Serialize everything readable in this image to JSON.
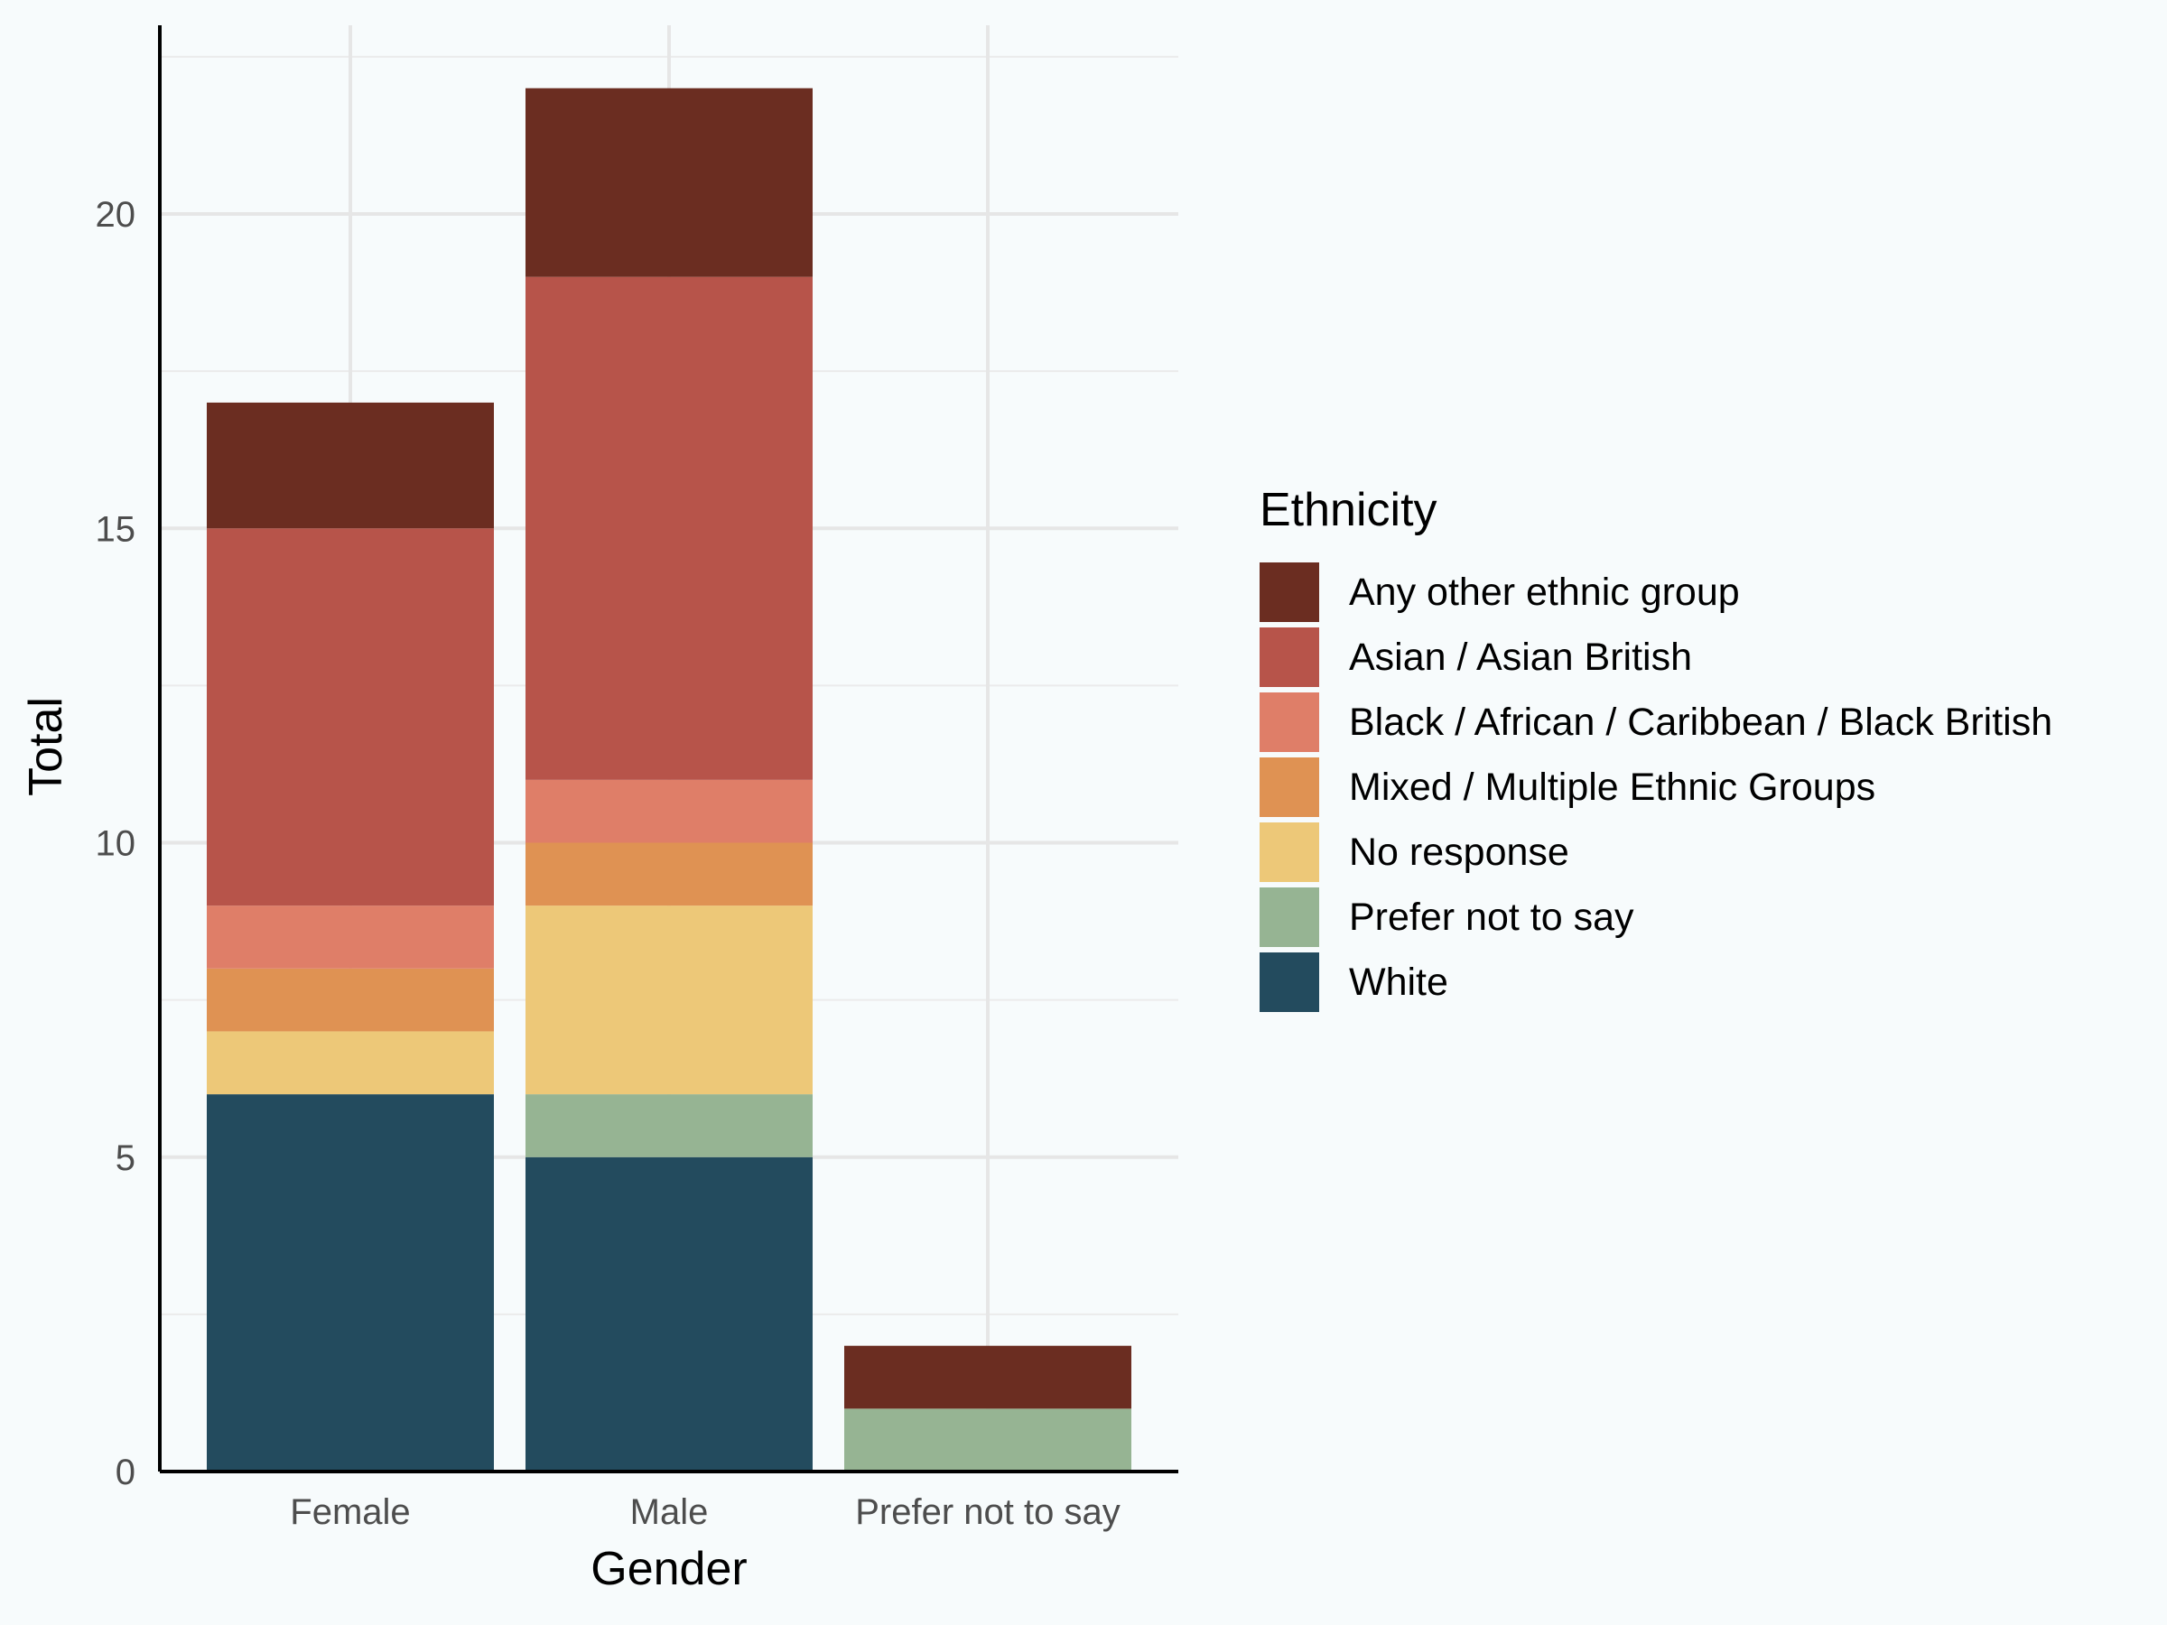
{
  "chart_data": {
    "type": "bar",
    "stacked": true,
    "title": "",
    "xlabel": "Gender",
    "ylabel": "Total",
    "categories": [
      "Female",
      "Male",
      "Prefer not to say"
    ],
    "ylim": [
      0,
      23
    ],
    "yticks": [
      0,
      5,
      10,
      15,
      20
    ],
    "grid": true,
    "legend": {
      "title": "Ethnicity",
      "position": "right"
    },
    "series": [
      {
        "name": "White",
        "color": "#234b5e",
        "values": [
          6,
          5,
          0
        ]
      },
      {
        "name": "Prefer not to say",
        "color": "#96b493",
        "values": [
          0,
          1,
          1
        ]
      },
      {
        "name": "No response",
        "color": "#edc878",
        "values": [
          1,
          3,
          0
        ]
      },
      {
        "name": "Mixed / Multiple Ethnic Groups",
        "color": "#df9253",
        "values": [
          1,
          1,
          0
        ]
      },
      {
        "name": "Black / African / Caribbean / Black British",
        "color": "#df7e68",
        "values": [
          1,
          1,
          0
        ]
      },
      {
        "name": "Asian / Asian British",
        "color": "#b7544a",
        "values": [
          6,
          8,
          0
        ]
      },
      {
        "name": "Any other ethnic group",
        "color": "#6b2d21",
        "values": [
          2,
          3,
          1
        ]
      }
    ],
    "legend_order": [
      "Any other ethnic group",
      "Asian / Asian British",
      "Black / African / Caribbean / Black British",
      "Mixed / Multiple Ethnic Groups",
      "No response",
      "Prefer not to say",
      "White"
    ]
  }
}
